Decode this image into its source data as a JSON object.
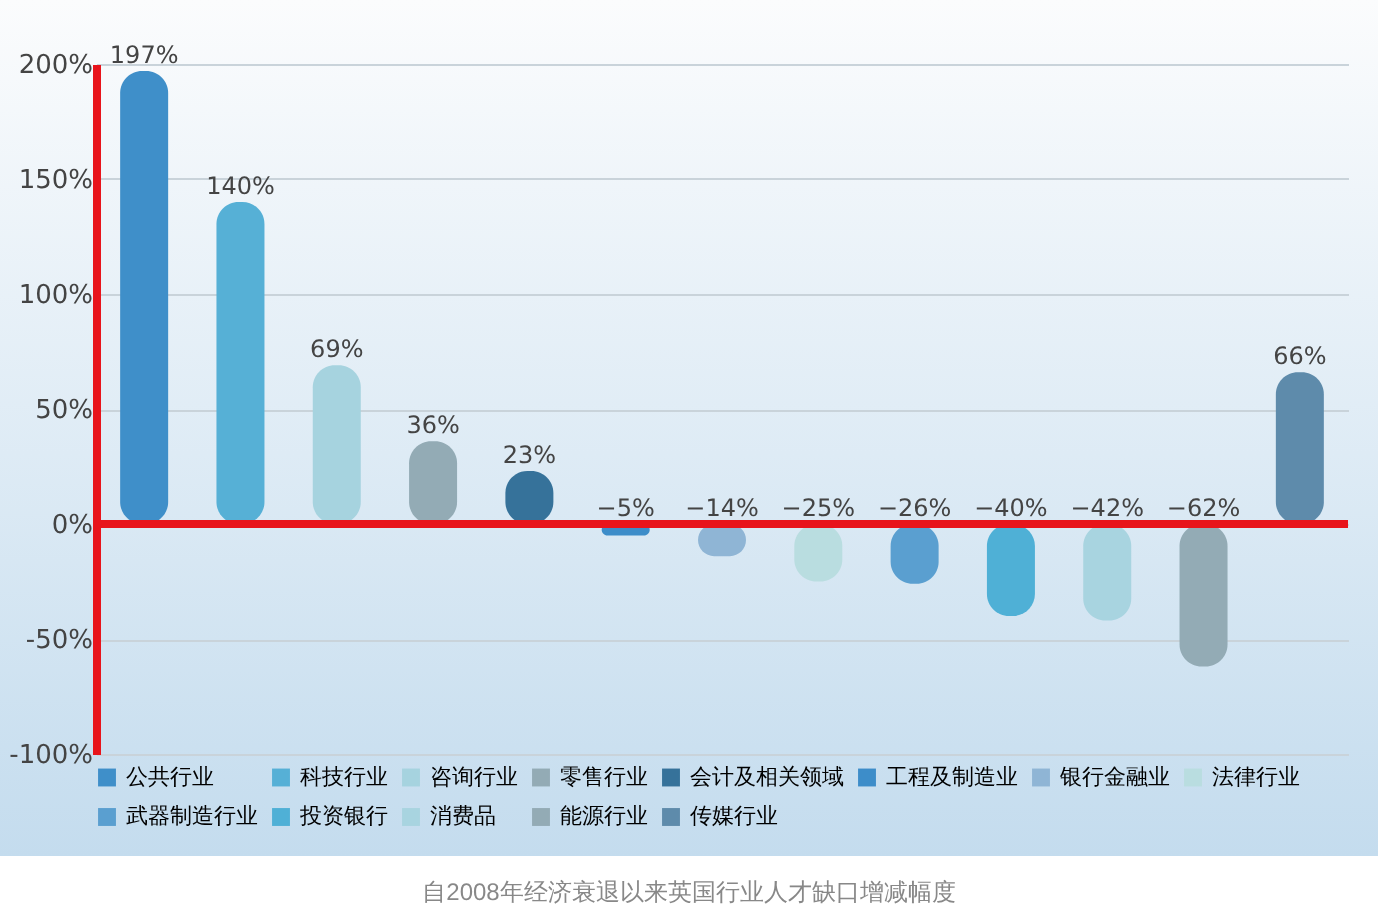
{
  "chart_data": {
    "type": "bar",
    "categories": [
      null,
      null,
      null,
      null,
      null,
      null,
      null,
      null,
      null,
      null,
      null,
      null,
      null
    ],
    "series": [
      {
        "name": "公共行业",
        "color": "#3f8fc9",
        "values": [
          197,
          null,
          null,
          null,
          null,
          null,
          null,
          null,
          null,
          null,
          null,
          null,
          null
        ],
        "value_labels": [
          "197%",
          null,
          null,
          null,
          null,
          null,
          null,
          null,
          null,
          null,
          null,
          null,
          null
        ]
      },
      {
        "name": "科技行业",
        "color": "#56b0d6",
        "values": [
          null,
          140,
          null,
          null,
          null,
          null,
          null,
          null,
          null,
          null,
          null,
          null,
          null
        ],
        "value_labels": [
          null,
          "140%",
          null,
          null,
          null,
          null,
          null,
          null,
          null,
          null,
          null,
          null,
          null
        ]
      },
      {
        "name": "咨询行业",
        "color": "#a6d3df",
        "values": [
          null,
          null,
          69,
          null,
          null,
          null,
          null,
          null,
          null,
          null,
          null,
          null,
          null
        ],
        "value_labels": [
          null,
          null,
          "69%",
          null,
          null,
          null,
          null,
          null,
          null,
          null,
          null,
          null,
          null
        ]
      },
      {
        "name": "零售行业",
        "color": "#93abb5",
        "values": [
          null,
          null,
          null,
          36,
          null,
          null,
          null,
          null,
          null,
          null,
          null,
          null,
          null
        ],
        "value_labels": [
          null,
          null,
          null,
          "36%",
          null,
          null,
          null,
          null,
          null,
          null,
          null,
          null,
          null
        ]
      },
      {
        "name": "会计及相关领域",
        "color": "#36729a",
        "values": [
          null,
          null,
          null,
          null,
          23,
          null,
          null,
          null,
          null,
          null,
          null,
          null,
          null
        ],
        "value_labels": [
          null,
          null,
          null,
          null,
          "23%",
          null,
          null,
          null,
          null,
          null,
          null,
          null,
          null
        ]
      },
      {
        "name": "工程及制造业",
        "color": "#3d8dc9",
        "values": [
          null,
          null,
          null,
          null,
          null,
          -5,
          null,
          null,
          null,
          null,
          null,
          null,
          null
        ],
        "value_labels": [
          null,
          null,
          null,
          null,
          null,
          "−5%",
          null,
          null,
          null,
          null,
          null,
          null,
          null
        ]
      },
      {
        "name": "银行金融业",
        "color": "#8fb5d5",
        "values": [
          null,
          null,
          null,
          null,
          null,
          null,
          -14,
          null,
          null,
          null,
          null,
          null,
          null
        ],
        "value_labels": [
          null,
          null,
          null,
          null,
          null,
          null,
          "−14%",
          null,
          null,
          null,
          null,
          null,
          null
        ]
      },
      {
        "name": "法律行业",
        "color": "#b9dde0",
        "values": [
          null,
          null,
          null,
          null,
          null,
          null,
          null,
          -25,
          null,
          null,
          null,
          null,
          null
        ],
        "value_labels": [
          null,
          null,
          null,
          null,
          null,
          null,
          null,
          "−25%",
          null,
          null,
          null,
          null,
          null
        ]
      },
      {
        "name": "武器制造行业",
        "color": "#5a9fd0",
        "values": [
          null,
          null,
          null,
          null,
          null,
          null,
          null,
          null,
          -26,
          null,
          null,
          null,
          null
        ],
        "value_labels": [
          null,
          null,
          null,
          null,
          null,
          null,
          null,
          null,
          "−26%",
          null,
          null,
          null,
          null
        ]
      },
      {
        "name": "投资银行",
        "color": "#4fb0d6",
        "values": [
          null,
          null,
          null,
          null,
          null,
          null,
          null,
          null,
          null,
          -40,
          null,
          null,
          null
        ],
        "value_labels": [
          null,
          null,
          null,
          null,
          null,
          null,
          null,
          null,
          null,
          "−40%",
          null,
          null,
          null
        ]
      },
      {
        "name": "消费品",
        "color": "#a8d4e0",
        "values": [
          null,
          null,
          null,
          null,
          null,
          null,
          null,
          null,
          null,
          null,
          -42,
          null,
          null
        ],
        "value_labels": [
          null,
          null,
          null,
          null,
          null,
          null,
          null,
          null,
          null,
          null,
          "−42%",
          null,
          null
        ]
      },
      {
        "name": "能源行业",
        "color": "#93abb5",
        "values": [
          null,
          null,
          null,
          null,
          null,
          null,
          null,
          null,
          null,
          null,
          null,
          -62,
          null
        ],
        "value_labels": [
          null,
          null,
          null,
          null,
          null,
          null,
          null,
          null,
          null,
          null,
          null,
          "−62%",
          null
        ]
      },
      {
        "name": "传媒行业",
        "color": "#5e8bab",
        "values": [
          null,
          null,
          null,
          null,
          null,
          null,
          null,
          null,
          null,
          null,
          null,
          null,
          66
        ],
        "value_labels": [
          null,
          null,
          null,
          null,
          null,
          null,
          null,
          null,
          null,
          null,
          null,
          null,
          "66%"
        ]
      }
    ],
    "ylim": [
      -100,
      200
    ],
    "yticks": [
      {
        "value": -100,
        "label": "-100%"
      },
      {
        "value": -50,
        "label": "-50%"
      },
      {
        "value": 0,
        "label": "0%"
      },
      {
        "value": 50,
        "label": "50%"
      },
      {
        "value": 100,
        "label": "100%"
      },
      {
        "value": 150,
        "label": "150%"
      },
      {
        "value": 200,
        "label": "200%"
      }
    ],
    "grid": "y",
    "legend": "bottom",
    "tick_labels": "y",
    "ref_lines": [
      {
        "axis": "y",
        "value": 0,
        "color": "#e8141b"
      }
    ],
    "annotations": [
      "自2008年经济衰退以来英国行业人才缺口增减幅度"
    ]
  }
}
